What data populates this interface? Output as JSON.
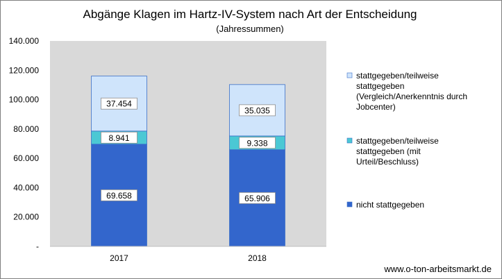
{
  "chart_data": {
    "type": "bar",
    "stacked": true,
    "title": "Abgänge Klagen im Hartz-IV-System nach Art der Entscheidung",
    "subtitle": "(Jahressummen)",
    "categories": [
      "2017",
      "2018"
    ],
    "series": [
      {
        "name": "nicht stattgegeben",
        "values": [
          69658,
          65906
        ],
        "labels": [
          "69.658",
          "65.906"
        ],
        "color": "#3366cc"
      },
      {
        "name": "stattgegeben/teilweise stattgegeben (mit Urteil/Beschluss)",
        "values": [
          8941,
          9338
        ],
        "labels": [
          "8.941",
          "9.338"
        ],
        "color": "#4bc8d4"
      },
      {
        "name": "stattgegeben/teilweise stattgegeben (Vergleich/Anerkenntnis durch Jobcenter)",
        "values": [
          37454,
          35035
        ],
        "labels": [
          "37.454",
          "35.035"
        ],
        "color": "#cfe4fb"
      }
    ],
    "ylim": [
      0,
      140000
    ],
    "yticks": [
      0,
      20000,
      40000,
      60000,
      80000,
      100000,
      120000,
      140000
    ],
    "ytick_labels": [
      "-",
      "20.000",
      "40.000",
      "60.000",
      "80.000",
      "100.000",
      "120.000",
      "140.000"
    ],
    "legend_position": "right",
    "plot_background": "#d9d9d9"
  },
  "legend": {
    "items": [
      {
        "lines": [
          "stattgegeben/teilweise",
          "stattgegeben",
          "(Vergleich/Anerkenntnis durch",
          "Jobcenter)"
        ],
        "color": "#cfe4fb"
      },
      {
        "lines": [
          "stattgegeben/teilweise",
          "stattgegeben (mit",
          "Urteil/Beschluss)"
        ],
        "color": "#4bc8d4"
      },
      {
        "lines": [
          "nicht stattgegeben"
        ],
        "color": "#3366cc"
      }
    ]
  },
  "source": "www.o-ton-arbeitsmarkt.de"
}
